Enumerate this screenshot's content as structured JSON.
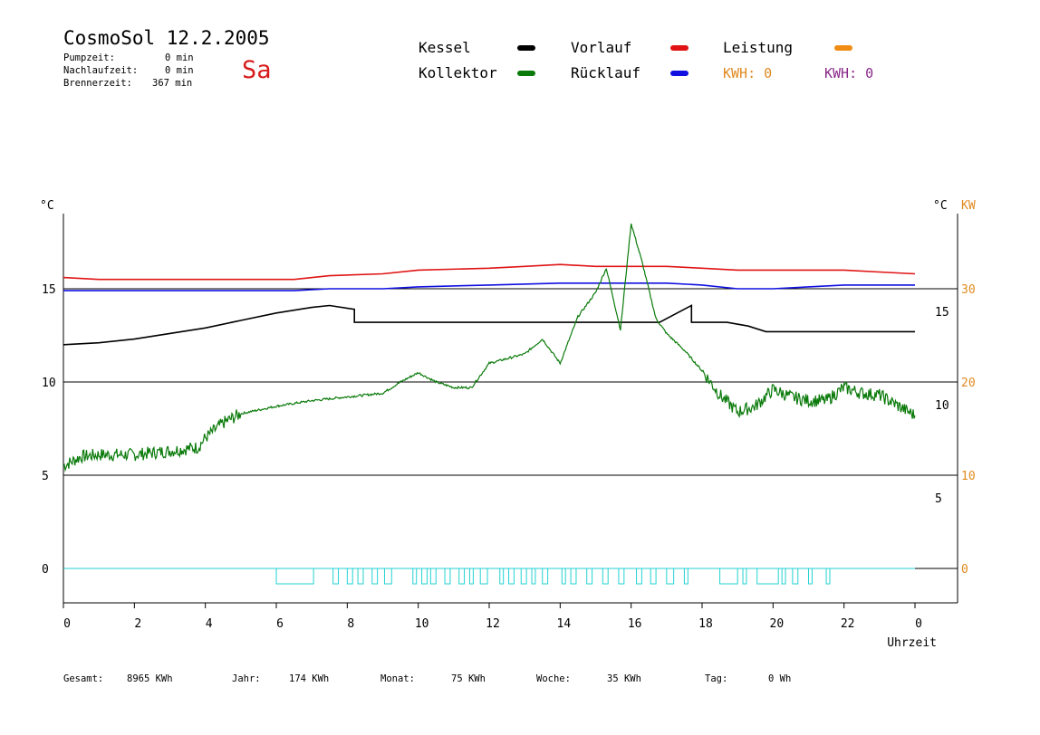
{
  "header": {
    "title": "CosmoSol 12.2.2005",
    "day": "Sa",
    "pumpzeit_label": "Pumpzeit:",
    "pumpzeit_value": "0 min",
    "nachlaufzeit_label": "Nachlaufzeit:",
    "nachlaufzeit_value": "0 min",
    "brennerzeit_label": "Brennerzeit:",
    "brennerzeit_value": "367 min"
  },
  "legend": {
    "kessel": "Kessel",
    "kollektor": "Kollektor",
    "vorlauf": "Vorlauf",
    "ruecklauf": "Rücklauf",
    "leistung": "Leistung",
    "kwh1": "KWH: 0",
    "kwh2": "KWH: 0"
  },
  "colors": {
    "kessel": "#000000",
    "kollektor": "#0a7a0a",
    "vorlauf": "#e01414",
    "ruecklauf": "#1010e0",
    "leistung": "#f08c14",
    "kwh2": "#8a2a8a",
    "pump": "#22d2d2",
    "pump_dark": "#b0206a"
  },
  "footer": {
    "gesamt_label": "Gesamt:",
    "gesamt_value": "8965 KWh",
    "jahr_label": "Jahr:",
    "jahr_value": "174 KWh",
    "monat_label": "Monat:",
    "monat_value": "75 KWh",
    "woche_label": "Woche:",
    "woche_value": "35 KWh",
    "tag_label": "Tag:",
    "tag_value": "0 Wh"
  },
  "chart_data": {
    "type": "line",
    "xlabel": "Uhrzeit",
    "ylabel_left": "°C",
    "ylabel_right_temp": "°C",
    "ylabel_right_power": "KW",
    "xlim": [
      0,
      24
    ],
    "x_tick_labels": [
      "0",
      "2",
      "4",
      "6",
      "8",
      "10",
      "12",
      "14",
      "16",
      "18",
      "20",
      "22",
      "0"
    ],
    "left_ticks": [
      0,
      5,
      10,
      15
    ],
    "right_temp_ticks": [
      5,
      10,
      15
    ],
    "right_power_ticks": [
      0,
      10,
      20,
      30
    ],
    "grid": "horizontal",
    "series": [
      {
        "name": "Vorlauf",
        "key": "vorlauf",
        "x": [
          0,
          1,
          6.5,
          7.5,
          9,
          10,
          12,
          13,
          14,
          15,
          16,
          17,
          18,
          19,
          20,
          21,
          22,
          23,
          24
        ],
        "y": [
          15.6,
          15.5,
          15.5,
          15.7,
          15.8,
          16.0,
          16.1,
          16.2,
          16.3,
          16.2,
          16.2,
          16.2,
          16.1,
          16.0,
          16.0,
          16.0,
          16.0,
          15.9,
          15.8
        ]
      },
      {
        "name": "Rücklauf",
        "key": "ruecklauf",
        "x": [
          0,
          6.5,
          7.5,
          9,
          10,
          12,
          14,
          15,
          16,
          17,
          18,
          19,
          20,
          21,
          22,
          23,
          24
        ],
        "y": [
          14.9,
          14.9,
          15.0,
          15.0,
          15.1,
          15.2,
          15.3,
          15.3,
          15.3,
          15.3,
          15.2,
          15.0,
          15.0,
          15.1,
          15.2,
          15.2,
          15.2
        ]
      },
      {
        "name": "Kessel",
        "key": "kessel",
        "x": [
          0,
          1,
          2,
          3,
          4,
          5,
          6,
          7,
          7.5,
          8.2,
          8.2,
          15.2,
          16.8,
          17.7,
          17.7,
          18.7,
          19.3,
          19.8,
          24
        ],
        "y": [
          12.0,
          12.1,
          12.3,
          12.6,
          12.9,
          13.3,
          13.7,
          14.0,
          14.1,
          13.9,
          13.2,
          13.2,
          13.2,
          14.1,
          13.2,
          13.2,
          13.0,
          12.7,
          12.7
        ]
      },
      {
        "name": "Kollektor",
        "key": "kollektor",
        "x": [
          0,
          0.5,
          1,
          2,
          3,
          3.8,
          4,
          4.5,
          5,
          6,
          7,
          8,
          9,
          9.5,
          10,
          10.5,
          11,
          11.5,
          12,
          13,
          13.5,
          14,
          14.5,
          15,
          15.3,
          15.7,
          16,
          16.3,
          16.7,
          17,
          17.5,
          18,
          18.5,
          19,
          19.5,
          20,
          20.5,
          21,
          21.5,
          22,
          22.5,
          23,
          24
        ],
        "y": [
          5.5,
          6.0,
          6.1,
          6.1,
          6.3,
          6.5,
          7.0,
          7.8,
          8.3,
          8.7,
          9.0,
          9.2,
          9.4,
          10.0,
          10.5,
          10.0,
          9.7,
          9.7,
          11.0,
          11.5,
          12.3,
          11.0,
          13.5,
          14.8,
          16.1,
          12.8,
          18.5,
          16.5,
          13.4,
          12.6,
          11.7,
          10.6,
          9.3,
          8.4,
          8.7,
          9.6,
          9.2,
          9.0,
          9.0,
          9.7,
          9.4,
          9.3,
          8.2
        ]
      }
    ],
    "pump_pulses": [
      [
        6,
        7.05
      ],
      [
        7.6,
        7.75
      ],
      [
        8,
        8.15
      ],
      [
        8.3,
        8.45
      ],
      [
        8.7,
        8.85
      ],
      [
        9.05,
        9.25
      ],
      [
        9.85,
        9.95
      ],
      [
        10.1,
        10.25
      ],
      [
        10.35,
        10.5
      ],
      [
        10.75,
        10.9
      ],
      [
        11.15,
        11.3
      ],
      [
        11.45,
        11.55
      ],
      [
        11.75,
        11.95
      ],
      [
        12.3,
        12.4
      ],
      [
        12.55,
        12.7
      ],
      [
        12.9,
        13.05
      ],
      [
        13.2,
        13.3
      ],
      [
        13.5,
        13.65
      ],
      [
        14.05,
        14.15
      ],
      [
        14.3,
        14.45
      ],
      [
        14.75,
        14.9
      ],
      [
        15.2,
        15.35
      ],
      [
        15.65,
        15.8
      ],
      [
        16.15,
        16.3
      ],
      [
        16.55,
        16.7
      ],
      [
        17.0,
        17.2
      ],
      [
        17.5,
        17.6
      ],
      [
        18.5,
        19.0
      ],
      [
        19.15,
        19.25
      ],
      [
        19.55,
        20.15
      ],
      [
        20.25,
        20.35
      ],
      [
        20.55,
        20.7
      ],
      [
        21.0,
        21.1
      ],
      [
        21.5,
        21.6
      ]
    ]
  }
}
